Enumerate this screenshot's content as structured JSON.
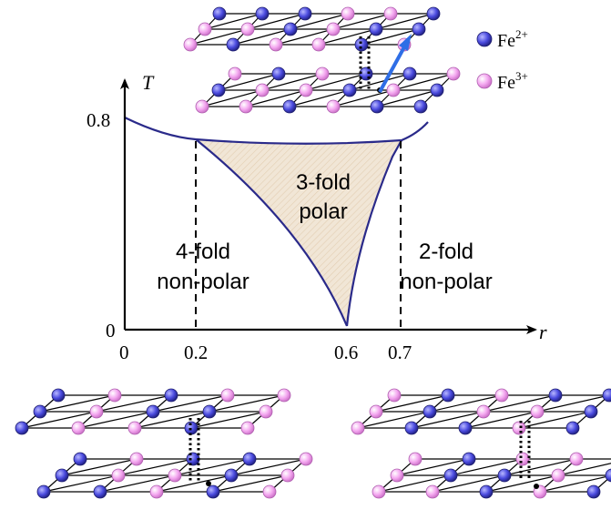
{
  "axes": {
    "x_label": "r",
    "y_label": "T",
    "x_ticks": [
      "0",
      "0.2",
      "0.6",
      "0.7"
    ],
    "y_ticks": [
      "0",
      "0.8"
    ]
  },
  "regions": {
    "left": {
      "line1": "4-fold",
      "line2": "non-polar"
    },
    "center": {
      "line1": "3-fold",
      "line2": "polar"
    },
    "right": {
      "line1": "2-fold",
      "line2": "non-polar"
    }
  },
  "legend": {
    "fe2": {
      "base": "Fe",
      "charge": "2+",
      "color": "#4b4bdf"
    },
    "fe3": {
      "base": "Fe",
      "charge": "3+",
      "color": "#f4a8f0"
    }
  },
  "colors": {
    "boundary": "#2a2a8a",
    "polar_fill": "#f1e6d6",
    "arrow": "#2f6ee6"
  },
  "lattices": {
    "top": [
      "fe2",
      "fe2",
      "fe2",
      "fe3",
      "fe3",
      "fe2",
      "fe3",
      "fe3",
      "fe2",
      "fe3",
      "fe2",
      "fe2",
      "fe3",
      "fe2",
      "fe3",
      "fe3",
      "fe2",
      "fe3",
      "fe2",
      "fe3",
      "fe3",
      "fe2",
      "fe3",
      "fe2"
    ],
    "bottom_left": [
      "fe2",
      "fe3",
      "fe2",
      "fe3",
      "fe3",
      "fe2",
      "fe3",
      "fe2",
      "fe2",
      "fe3",
      "fe2",
      "fe3",
      "fe3",
      "fe2",
      "fe3",
      "fe2",
      "fe2",
      "fe3",
      "fe2",
      "fe3",
      "fe2",
      "fe3",
      "fe2",
      "fe3"
    ],
    "bottom_right": [
      "fe3",
      "fe2",
      "fe3",
      "fe2",
      "fe2",
      "fe3",
      "fe2",
      "fe3",
      "fe3",
      "fe2",
      "fe3",
      "fe2",
      "fe2",
      "fe3",
      "fe2",
      "fe3",
      "fe3",
      "fe2",
      "fe3",
      "fe2",
      "fe2",
      "fe3",
      "fe2",
      "fe3"
    ]
  }
}
